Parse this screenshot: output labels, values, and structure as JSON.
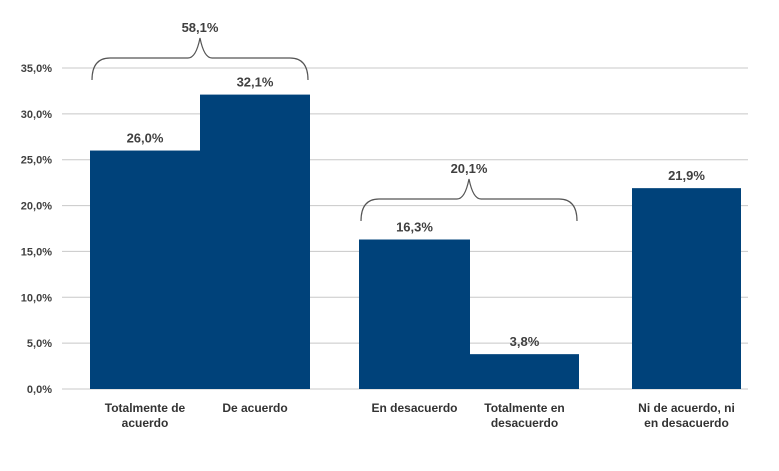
{
  "chart_data": {
    "type": "bar",
    "categories": [
      [
        "Totalmente de",
        "acuerdo"
      ],
      [
        "De acuerdo"
      ],
      [
        "En desacuerdo"
      ],
      [
        "Totalmente en",
        "desacuerdo"
      ],
      [
        "Ni de acuerdo, ni",
        "en desacuerdo"
      ]
    ],
    "values": [
      26.0,
      32.1,
      16.3,
      3.8,
      21.9
    ],
    "value_labels": [
      "26,0%",
      "32,1%",
      "16,3%",
      "3,8%",
      "21,9%"
    ],
    "ylim": [
      0,
      35
    ],
    "yticks": [
      0,
      5,
      10,
      15,
      20,
      25,
      30,
      35
    ],
    "ytick_labels": [
      "0,0%",
      "5,0%",
      "10,0%",
      "15,0%",
      "20,0%",
      "25,0%",
      "30,0%",
      "35,0%"
    ],
    "grid": true,
    "bar_color": "#00427a",
    "groups": [
      {
        "label": "58,1%",
        "from": 0,
        "to": 1
      },
      {
        "label": "20,1%",
        "from": 2,
        "to": 3
      }
    ]
  }
}
